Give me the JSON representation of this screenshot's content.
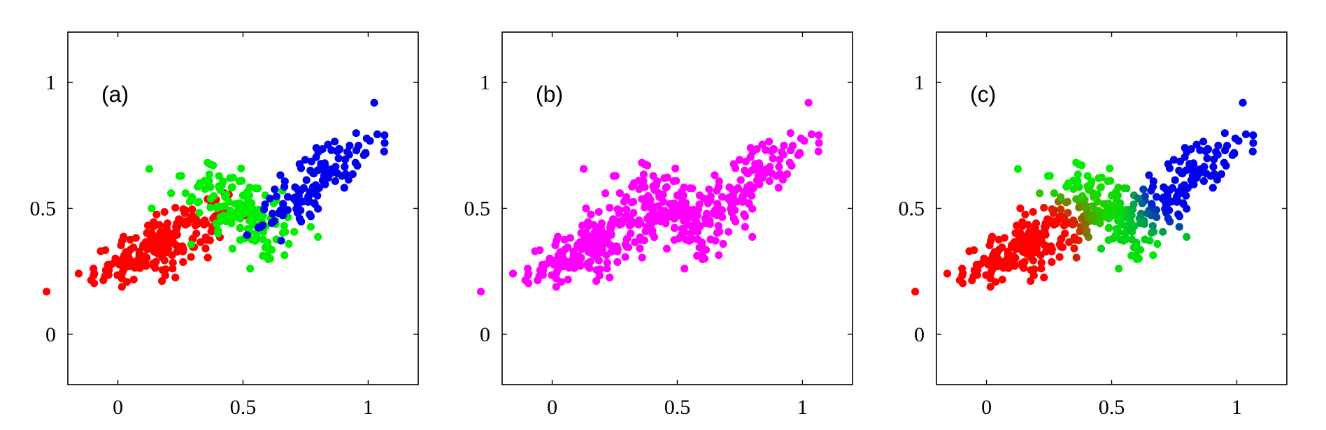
{
  "chart_data": [
    {
      "type": "scatter",
      "panel_label": "(a)",
      "xlim": [
        -0.2,
        1.2
      ],
      "ylim": [
        -0.2,
        1.2
      ],
      "xticks": [
        0,
        0.5,
        1
      ],
      "yticks": [
        0,
        0.5,
        1
      ],
      "xtick_labels": [
        "0",
        "0.5",
        "1"
      ],
      "ytick_labels": [
        "0",
        "0.5",
        "1"
      ],
      "grid": false,
      "coloring": "hard cluster assignment",
      "series": [
        {
          "color": "#ff0000",
          "center": [
            0.17,
            0.36
          ],
          "spread": [
            0.13,
            0.08
          ],
          "correlation": 0.75,
          "count": 210
        },
        {
          "color": "#00ee00",
          "center": [
            0.49,
            0.49
          ],
          "spread": [
            0.11,
            0.1
          ],
          "correlation": -0.6,
          "count": 150
        },
        {
          "color": "#0000ee",
          "center": [
            0.8,
            0.61
          ],
          "spread": [
            0.12,
            0.1
          ],
          "correlation": 0.75,
          "count": 130
        }
      ]
    },
    {
      "type": "scatter",
      "panel_label": "(b)",
      "xlim": [
        -0.2,
        1.2
      ],
      "ylim": [
        -0.2,
        1.2
      ],
      "xticks": [
        0,
        0.5,
        1
      ],
      "yticks": [
        0,
        0.5,
        1
      ],
      "xtick_labels": [
        "0",
        "0.5",
        "1"
      ],
      "ytick_labels": [
        "0",
        "0.5",
        "1"
      ],
      "grid": false,
      "coloring": "single color (unlabeled data)",
      "series": [
        {
          "color": "#ff00ff",
          "center": [
            0.17,
            0.36
          ],
          "spread": [
            0.13,
            0.08
          ],
          "correlation": 0.75,
          "count": 210
        },
        {
          "color": "#ff00ff",
          "center": [
            0.49,
            0.49
          ],
          "spread": [
            0.11,
            0.1
          ],
          "correlation": -0.6,
          "count": 150
        },
        {
          "color": "#ff00ff",
          "center": [
            0.8,
            0.61
          ],
          "spread": [
            0.12,
            0.1
          ],
          "correlation": 0.75,
          "count": 130
        }
      ]
    },
    {
      "type": "scatter",
      "panel_label": "(c)",
      "xlim": [
        -0.2,
        1.2
      ],
      "ylim": [
        -0.2,
        1.2
      ],
      "xticks": [
        0,
        0.5,
        1
      ],
      "yticks": [
        0,
        0.5,
        1
      ],
      "xtick_labels": [
        "0",
        "0.5",
        "1"
      ],
      "ytick_labels": [
        "0",
        "0.5",
        "1"
      ],
      "grid": false,
      "coloring": "blended by responsibilities (red, green, blue)",
      "series": [
        {
          "color": "#ff0000",
          "center": [
            0.17,
            0.36
          ],
          "spread": [
            0.13,
            0.08
          ],
          "correlation": 0.75,
          "count": 210
        },
        {
          "color": "#00ee00",
          "center": [
            0.49,
            0.49
          ],
          "spread": [
            0.11,
            0.1
          ],
          "correlation": -0.6,
          "count": 150
        },
        {
          "color": "#0000ee",
          "center": [
            0.8,
            0.61
          ],
          "spread": [
            0.12,
            0.1
          ],
          "correlation": 0.75,
          "count": 130
        }
      ]
    }
  ]
}
